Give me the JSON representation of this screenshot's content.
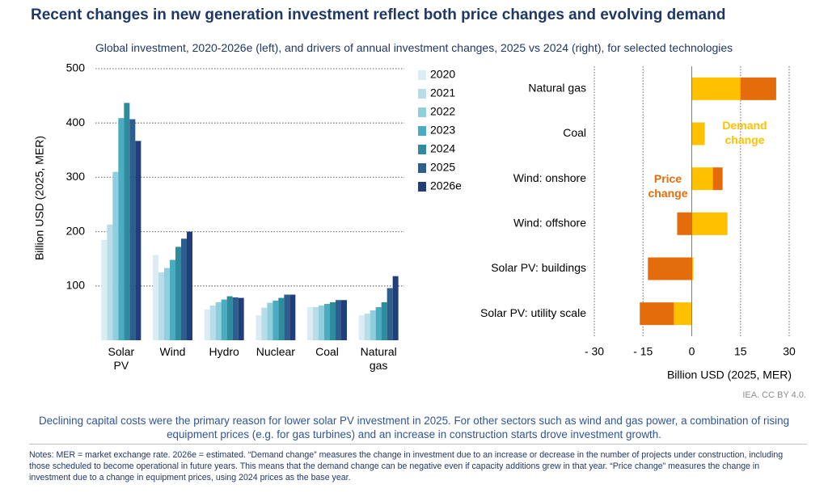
{
  "title": "Recent changes in new generation investment reflect both price changes and evolving demand",
  "subtitle": "Global investment, 2020-2026e (left), and drivers of annual investment changes, 2025 vs 2024 (right), for selected technologies",
  "chart_data": [
    {
      "type": "bar",
      "orientation": "vertical",
      "y_label": "Billion USD (2025, MER)",
      "categories": [
        "Solar PV",
        "Wind",
        "Hydro",
        "Nuclear",
        "Coal",
        "Natural gas"
      ],
      "series": [
        {
          "name": "2020",
          "color": "#dcecf3",
          "values": [
            185,
            157,
            57,
            46,
            61,
            46
          ]
        },
        {
          "name": "2021",
          "color": "#b9dde8",
          "values": [
            213,
            125,
            64,
            60,
            61,
            49
          ]
        },
        {
          "name": "2022",
          "color": "#8fcfdd",
          "values": [
            310,
            133,
            70,
            69,
            64,
            55
          ]
        },
        {
          "name": "2023",
          "color": "#4aacc0",
          "values": [
            409,
            148,
            75,
            73,
            67,
            61
          ]
        },
        {
          "name": "2024",
          "color": "#2e8c9f",
          "values": [
            437,
            172,
            81,
            78,
            70,
            70
          ]
        },
        {
          "name": "2025",
          "color": "#2d5e8e",
          "values": [
            407,
            187,
            79,
            84,
            74,
            96
          ]
        },
        {
          "name": "2026e",
          "color": "#203f7a",
          "values": [
            367,
            200,
            78,
            84,
            74,
            118
          ]
        }
      ],
      "ylim": [
        0,
        500
      ],
      "yticks": [
        100,
        200,
        300,
        400,
        500
      ],
      "grid": true
    },
    {
      "type": "bar",
      "orientation": "horizontal",
      "stacked": true,
      "x_label": "Billion USD (2025, MER)",
      "categories": [
        "Natural gas",
        "Coal",
        "Wind: onshore",
        "Wind: offshore",
        "Solar PV: buildings",
        "Solar PV: utility scale"
      ],
      "series": [
        {
          "name": "Demand change",
          "color": "#ffc000",
          "values": [
            15,
            4,
            6.5,
            11,
            0.5,
            -5.5
          ]
        },
        {
          "name": "Price change",
          "color": "#e46c0a",
          "values": [
            11,
            0,
            3,
            -4.5,
            -13.5,
            -10.5
          ]
        }
      ],
      "xlim": [
        -30,
        30
      ],
      "xticks": [
        {
          "value": -30,
          "label": "- 30"
        },
        {
          "value": -15,
          "label": "- 15"
        },
        0,
        15,
        30
      ],
      "grid": true
    }
  ],
  "source": "IEA. CC BY 4.0.",
  "caption": "Declining capital costs were the primary reason for lower solar PV investment in 2025. For other sectors such as wind and gas power, a combination of rising equipment prices (e.g. for gas turbines) and an increase in construction starts drove investment growth.",
  "notes": "Notes: MER = market exchange rate. 2026e = estimated. “Demand change” measures the change in investment due to an increase or decrease in the number of projects under construction, including those scheduled to become operational in future years. This means that the demand change can be negative even if capacity additions grew in that year. “Price change” measures the change in investment due to a change in equipment prices, using 2024 prices as the base year."
}
